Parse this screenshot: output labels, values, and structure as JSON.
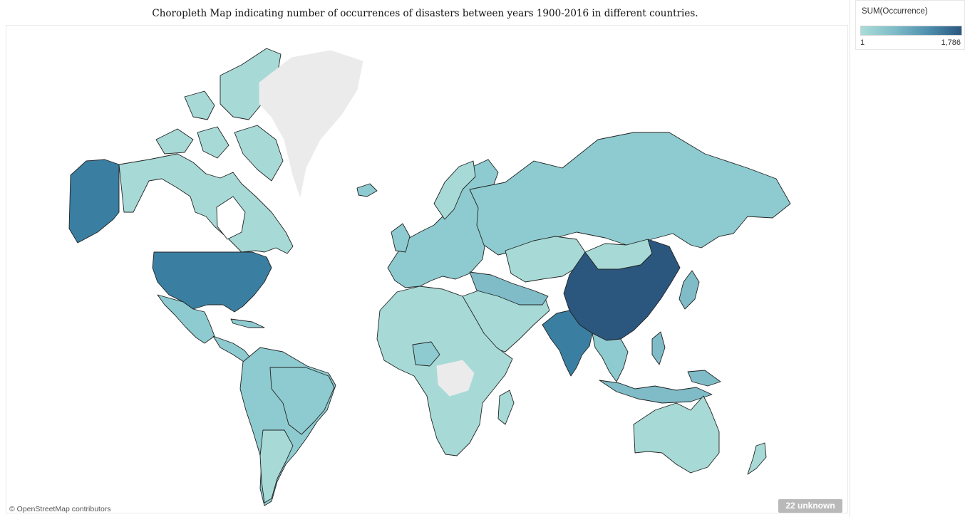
{
  "title": "Choropleth Map indicating number of occurrences of disasters between years 1900-2016 in different countries.",
  "legend": {
    "title": "SUM(Occurrence)",
    "min_label": "1",
    "max_label": "1,786",
    "colors": [
      "#a9dcd8",
      "#7fbcc8",
      "#4e90ad",
      "#2b577f"
    ]
  },
  "attribution": "© OpenStreetMap contributors",
  "unknown_badge": "22 unknown",
  "map": {
    "no_data_color": "#ebebeb",
    "highlighted_regions": [
      {
        "region": "China",
        "level": "highest"
      },
      {
        "region": "India",
        "level": "high"
      },
      {
        "region": "United States",
        "level": "high"
      },
      {
        "region": "Alaska",
        "level": "high"
      },
      {
        "region": "Greenland",
        "level": "no data"
      },
      {
        "region": "Central Africa",
        "level": "no data"
      }
    ]
  }
}
